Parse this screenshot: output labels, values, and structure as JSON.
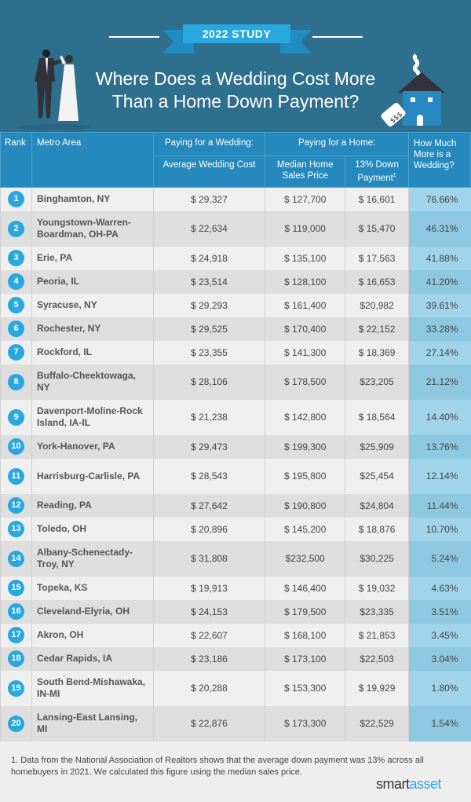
{
  "header": {
    "badge": "2022 STUDY",
    "title_line1": "Where Does a Wedding Cost More",
    "title_line2": "Than a Home Down Payment?"
  },
  "table": {
    "col_rank": "Rank",
    "col_metro": "Metro Area",
    "group_wedding": "Paying for a Wedding:",
    "group_home": "Paying for a Home:",
    "col_wedding_cost": "Average Wedding Cost",
    "col_median": "Median Home Sales Price",
    "col_down": "13% Down Payment",
    "col_down_sup": "1",
    "col_more": "How Much More is a Wedding?",
    "rows": [
      {
        "rank": "1",
        "metro": "Binghamton, NY",
        "wedding": "$ 29,327",
        "median": "$  127,700",
        "down": "$ 16,601",
        "more": "76.66%"
      },
      {
        "rank": "2",
        "metro": "Youngstown-Warren-Boardman, OH-PA",
        "wedding": "$ 22,634",
        "median": "$  119,000",
        "down": "$ 15,470",
        "more": "46.31%"
      },
      {
        "rank": "3",
        "metro": "Erie, PA",
        "wedding": "$  24,918",
        "median": "$  135,100",
        "down": "$ 17,563",
        "more": "41.88%"
      },
      {
        "rank": "4",
        "metro": "Peoria, IL",
        "wedding": "$  23,514",
        "median": "$  128,100",
        "down": "$ 16,653",
        "more": "41.20%"
      },
      {
        "rank": "5",
        "metro": "Syracuse, NY",
        "wedding": "$ 29,293",
        "median": "$  161,400",
        "down": "$20,982",
        "more": "39.61%"
      },
      {
        "rank": "6",
        "metro": "Rochester, NY",
        "wedding": "$ 29,525",
        "median": "$  170,400",
        "down": "$ 22,152",
        "more": "33.28%"
      },
      {
        "rank": "7",
        "metro": "Rockford, IL",
        "wedding": "$ 23,355",
        "median": "$  141,300",
        "down": "$ 18,369",
        "more": "27.14%"
      },
      {
        "rank": "8",
        "metro": "Buffalo-Cheektowaga, NY",
        "wedding": "$ 28,106",
        "median": "$  178,500",
        "down": "$23,205",
        "more": "21.12%"
      },
      {
        "rank": "9",
        "metro": "Davenport-Moline-Rock Island, IA-IL",
        "wedding": "$ 21,238",
        "median": "$  142,800",
        "down": "$ 18,564",
        "more": "14.40%"
      },
      {
        "rank": "10",
        "metro": "York-Hanover, PA",
        "wedding": "$ 29,473",
        "median": "$  199,300",
        "down": "$25,909",
        "more": "13.76%"
      },
      {
        "rank": "11",
        "metro": "Harrisburg-Carlisle, PA",
        "wedding": "$ 28,543",
        "median": "$  195,800",
        "down": "$25,454",
        "more": "12.14%"
      },
      {
        "rank": "12",
        "metro": "Reading, PA",
        "wedding": "$ 27,642",
        "median": "$  190,800",
        "down": "$24,804",
        "more": "11.44%"
      },
      {
        "rank": "13",
        "metro": "Toledo, OH",
        "wedding": "$ 20,896",
        "median": "$  145,200",
        "down": "$ 18,876",
        "more": "10.70%"
      },
      {
        "rank": "14",
        "metro": "Albany-Schenectady-Troy, NY",
        "wedding": "$ 31,808",
        "median": "$232,500",
        "down": "$30,225",
        "more": "5.24%"
      },
      {
        "rank": "15",
        "metro": "Topeka, KS",
        "wedding": "$  19,913",
        "median": "$  146,400",
        "down": "$ 19,032",
        "more": "4.63%"
      },
      {
        "rank": "16",
        "metro": "Cleveland-Elyria, OH",
        "wedding": "$ 24,153",
        "median": "$  179,500",
        "down": "$23,335",
        "more": "3.51%"
      },
      {
        "rank": "17",
        "metro": "Akron, OH",
        "wedding": "$ 22,607",
        "median": "$  168,100",
        "down": "$ 21,853",
        "more": "3.45%"
      },
      {
        "rank": "18",
        "metro": "Cedar Rapids, IA",
        "wedding": "$ 23,186",
        "median": "$  173,100",
        "down": "$22,503",
        "more": "3.04%"
      },
      {
        "rank": "19",
        "metro": "South Bend-Mishawaka, IN-MI",
        "wedding": "$ 20,288",
        "median": "$  153,300",
        "down": "$ 19,929",
        "more": "1.80%"
      },
      {
        "rank": "20",
        "metro": "Lansing-East Lansing, MI",
        "wedding": "$ 22,876",
        "median": "$  173,300",
        "down": "$22,529",
        "more": "1.54%"
      }
    ]
  },
  "footnote": "1. Data from the National Association of Realtors shows that the average down payment was 13% across all homebuyers in 2021. We calculated this figure using the median sales price.",
  "logo": {
    "part1": "smart",
    "part2": "asset"
  },
  "colors": {
    "hero_bg": "#2e6f8d",
    "header_bg": "#2589bd",
    "accent": "#29a8e0",
    "pct_col": "#a0d4ea"
  }
}
